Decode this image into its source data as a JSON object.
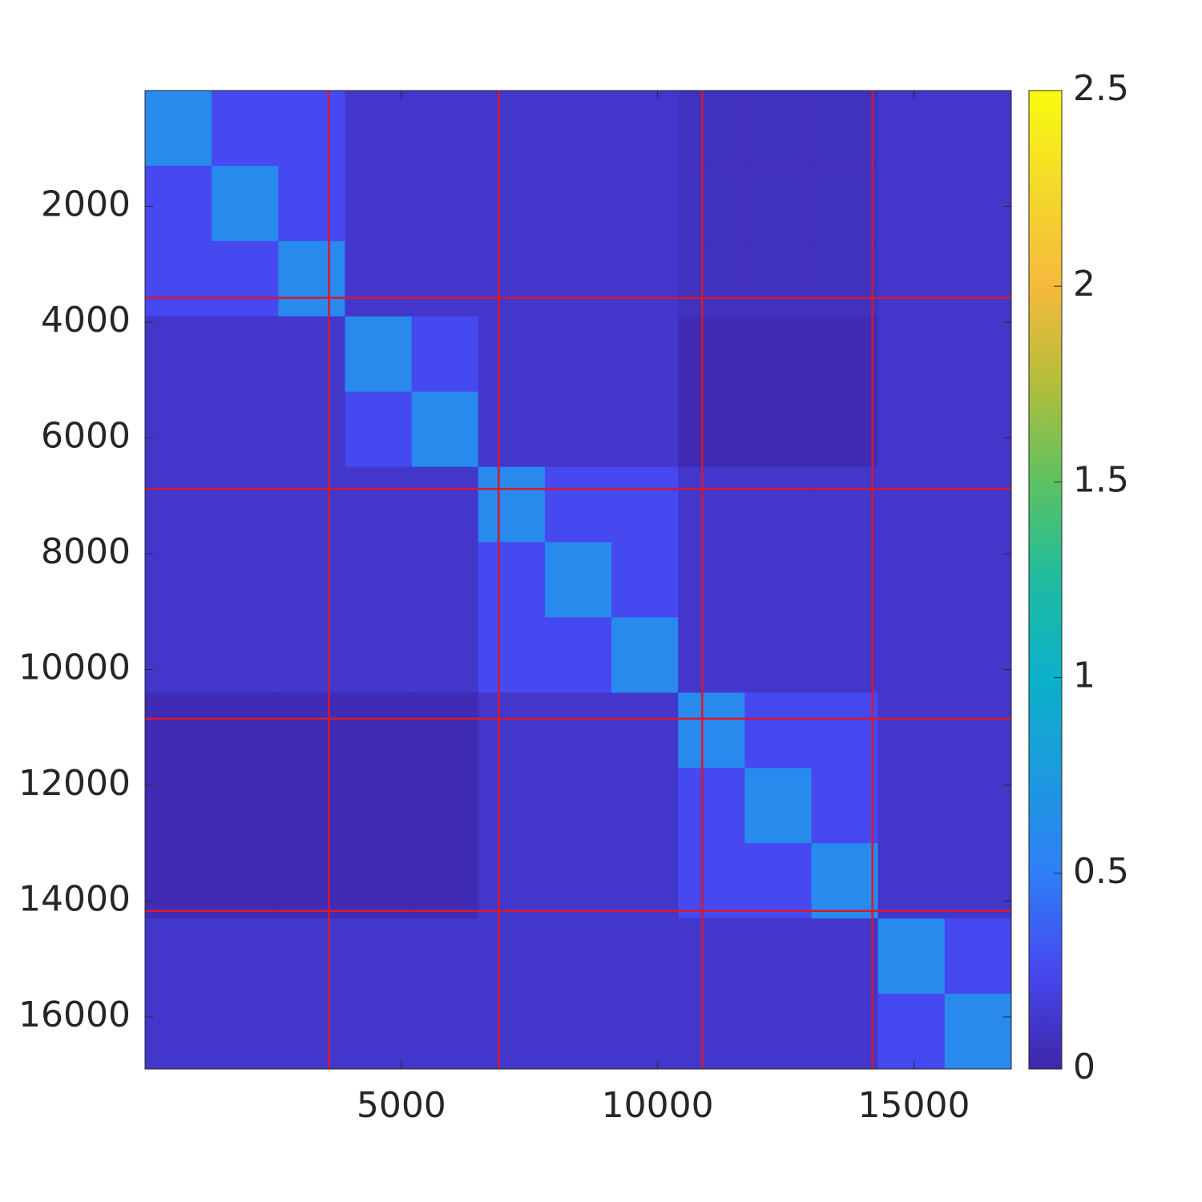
{
  "chart_data": {
    "type": "heatmap",
    "colormap": "parula",
    "xbins": [
      0,
      1300,
      2600,
      3900,
      5200,
      6500,
      7800,
      9100,
      10400,
      11700,
      13000,
      14300,
      15600,
      16900
    ],
    "ybins": [
      0,
      1300,
      2600,
      3900,
      5200,
      6500,
      7800,
      9100,
      10400,
      11700,
      13000,
      14300,
      15600,
      16900
    ],
    "values": [
      [
        0.6,
        0.25,
        0.25,
        0.12,
        0.12,
        0.12,
        0.12,
        0.12,
        0.08,
        0.08,
        0.08,
        0.12,
        0.12
      ],
      [
        0.25,
        0.6,
        0.25,
        0.12,
        0.12,
        0.12,
        0.12,
        0.12,
        0.08,
        0.08,
        0.08,
        0.12,
        0.12
      ],
      [
        0.25,
        0.25,
        0.6,
        0.12,
        0.12,
        0.12,
        0.12,
        0.12,
        0.08,
        0.08,
        0.08,
        0.12,
        0.12
      ],
      [
        0.12,
        0.12,
        0.12,
        0.6,
        0.25,
        0.12,
        0.12,
        0.12,
        0.04,
        0.04,
        0.04,
        0.12,
        0.12
      ],
      [
        0.12,
        0.12,
        0.12,
        0.25,
        0.6,
        0.12,
        0.12,
        0.12,
        0.04,
        0.04,
        0.04,
        0.12,
        0.12
      ],
      [
        0.12,
        0.12,
        0.12,
        0.12,
        0.12,
        0.6,
        0.25,
        0.25,
        0.12,
        0.12,
        0.12,
        0.12,
        0.12
      ],
      [
        0.12,
        0.12,
        0.12,
        0.12,
        0.12,
        0.25,
        0.6,
        0.25,
        0.12,
        0.12,
        0.12,
        0.12,
        0.12
      ],
      [
        0.12,
        0.12,
        0.12,
        0.12,
        0.12,
        0.25,
        0.25,
        0.6,
        0.12,
        0.12,
        0.12,
        0.12,
        0.12
      ],
      [
        0.04,
        0.04,
        0.04,
        0.04,
        0.04,
        0.12,
        0.12,
        0.12,
        0.6,
        0.25,
        0.25,
        0.12,
        0.12
      ],
      [
        0.04,
        0.04,
        0.04,
        0.04,
        0.04,
        0.12,
        0.12,
        0.12,
        0.25,
        0.6,
        0.25,
        0.12,
        0.12
      ],
      [
        0.04,
        0.04,
        0.04,
        0.04,
        0.04,
        0.12,
        0.12,
        0.12,
        0.25,
        0.25,
        0.6,
        0.12,
        0.12
      ],
      [
        0.12,
        0.12,
        0.12,
        0.12,
        0.12,
        0.12,
        0.12,
        0.12,
        0.12,
        0.12,
        0.12,
        0.6,
        0.25
      ],
      [
        0.12,
        0.12,
        0.12,
        0.12,
        0.12,
        0.12,
        0.12,
        0.12,
        0.12,
        0.12,
        0.12,
        0.25,
        0.6
      ]
    ],
    "xlim": [
      0,
      16900
    ],
    "ylim": [
      0,
      16900
    ],
    "y_reversed": true,
    "xticks": [
      5000,
      10000,
      15000
    ],
    "yticks": [
      2000,
      4000,
      6000,
      8000,
      10000,
      12000,
      14000,
      16000
    ],
    "clim": [
      0,
      2.5
    ],
    "cticks": [
      0,
      0.5,
      1,
      1.5,
      2,
      2.5
    ],
    "lines": {
      "color": "#d7192c",
      "x": [
        3590,
        6900,
        10870,
        14190
      ],
      "y": [
        3580,
        6880,
        10850,
        14170
      ]
    }
  }
}
